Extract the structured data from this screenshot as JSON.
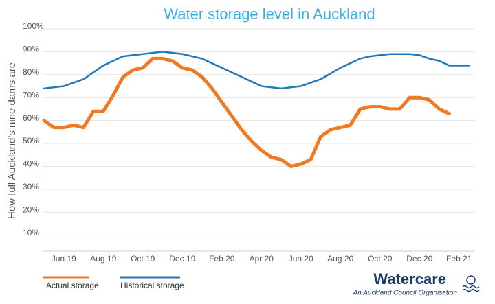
{
  "chart_data": {
    "type": "line",
    "title": "Water storage level in Auckland",
    "y_label": "How full Auckland’s nine dams are",
    "categories": [
      null,
      null,
      "Jun 19",
      null,
      null,
      null,
      "Aug 19",
      null,
      null,
      null,
      "Oct 19",
      null,
      null,
      null,
      "Dec 19",
      null,
      null,
      null,
      "Feb 20",
      null,
      null,
      null,
      "Apr 20",
      null,
      null,
      null,
      "Jun 20",
      null,
      null,
      null,
      "Aug 20",
      null,
      null,
      null,
      "Oct 20",
      null,
      null,
      null,
      "Dec 20",
      null,
      null,
      null,
      "Feb 21",
      null
    ],
    "series": [
      {
        "name": "Actual storage",
        "color": "#f07a24",
        "values": [
          60,
          57,
          57,
          58,
          57,
          64,
          64,
          71,
          79,
          82,
          83,
          87,
          87,
          86,
          83,
          82,
          79,
          74,
          68,
          62,
          56,
          51,
          47,
          44,
          43,
          40,
          41,
          43,
          53,
          56,
          57,
          58,
          65,
          66,
          66,
          65,
          65,
          70,
          70,
          69,
          65,
          63,
          null,
          null
        ]
      },
      {
        "name": "Historical storage",
        "color": "#1f78b8",
        "values": [
          74,
          74.5,
          75,
          76.5,
          78,
          81,
          84,
          86,
          88,
          88.5,
          89,
          89.5,
          90,
          89.5,
          89,
          88,
          87,
          85,
          83,
          81,
          79,
          77,
          75,
          74.5,
          74,
          74.5,
          75,
          76.5,
          78,
          80.5,
          83,
          85,
          87,
          88,
          88.5,
          89,
          89,
          89,
          88.5,
          87,
          86,
          84,
          84,
          84
        ]
      }
    ],
    "ylim": [
      3,
      100
    ],
    "yticks": [
      {
        "value": 10,
        "label": "10%"
      },
      {
        "value": 20,
        "label": "20%"
      },
      {
        "value": 30,
        "label": "30%"
      },
      {
        "value": 40,
        "label": "40%"
      },
      {
        "value": 50,
        "label": "50%"
      },
      {
        "value": 60,
        "label": "60%"
      },
      {
        "value": 70,
        "label": "70%"
      },
      {
        "value": 80,
        "label": "80%"
      },
      {
        "value": 90,
        "label": "90%"
      },
      {
        "value": 100,
        "label": "100%"
      }
    ],
    "grid": true
  },
  "branding": {
    "name": "Watercare",
    "tagline": "An Auckland Council Organisation"
  }
}
